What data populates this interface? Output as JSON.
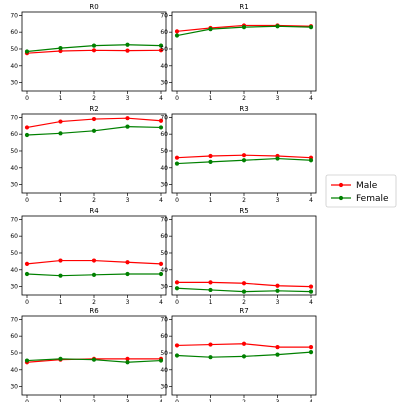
{
  "chart_data": {
    "type": "line",
    "x": [
      0,
      1,
      2,
      3,
      4
    ],
    "ylim": [
      25,
      72
    ],
    "yticks": [
      30,
      40,
      50,
      60,
      70
    ],
    "xticks": [
      0,
      1,
      2,
      3,
      4
    ],
    "grid": false,
    "legend_placement": "right",
    "series_styles": {
      "Male": {
        "color": "#ff0000",
        "marker": "circle"
      },
      "Female": {
        "color": "#008000",
        "marker": "circle"
      }
    },
    "legend": [
      "Male",
      "Female"
    ],
    "panels": [
      {
        "title": "R0",
        "series": [
          {
            "name": "Male",
            "values": [
              47.5,
              48.8,
              49.2,
              49.0,
              49.2
            ]
          },
          {
            "name": "Female",
            "values": [
              48.5,
              50.5,
              52.0,
              52.5,
              52.0
            ]
          }
        ]
      },
      {
        "title": "R1",
        "series": [
          {
            "name": "Male",
            "values": [
              60.5,
              62.5,
              64.0,
              64.0,
              63.5
            ]
          },
          {
            "name": "Female",
            "values": [
              58.0,
              61.8,
              63.0,
              63.5,
              63.0
            ]
          }
        ]
      },
      {
        "title": "R2",
        "series": [
          {
            "name": "Male",
            "values": [
              64.0,
              67.5,
              69.0,
              69.5,
              68.0
            ]
          },
          {
            "name": "Female",
            "values": [
              59.5,
              60.5,
              62.0,
              64.5,
              64.0
            ]
          }
        ]
      },
      {
        "title": "R3",
        "series": [
          {
            "name": "Male",
            "values": [
              46.0,
              47.0,
              47.5,
              47.0,
              46.0
            ]
          },
          {
            "name": "Female",
            "values": [
              42.5,
              43.5,
              44.5,
              45.5,
              44.5
            ]
          }
        ]
      },
      {
        "title": "R4",
        "series": [
          {
            "name": "Male",
            "values": [
              43.5,
              45.5,
              45.5,
              44.5,
              43.5
            ]
          },
          {
            "name": "Female",
            "values": [
              37.5,
              36.5,
              37.0,
              37.5,
              37.5
            ]
          }
        ]
      },
      {
        "title": "R5",
        "series": [
          {
            "name": "Male",
            "values": [
              32.5,
              32.5,
              32.0,
              30.5,
              30.0
            ]
          },
          {
            "name": "Female",
            "values": [
              29.0,
              28.0,
              27.0,
              27.5,
              27.0
            ]
          }
        ]
      },
      {
        "title": "R6",
        "series": [
          {
            "name": "Male",
            "values": [
              44.5,
              46.0,
              46.5,
              46.5,
              46.5
            ]
          },
          {
            "name": "Female",
            "values": [
              45.5,
              46.5,
              46.0,
              44.5,
              45.5
            ]
          }
        ]
      },
      {
        "title": "R7",
        "series": [
          {
            "name": "Male",
            "values": [
              54.5,
              55.0,
              55.5,
              53.5,
              53.5
            ]
          },
          {
            "name": "Female",
            "values": [
              48.5,
              47.5,
              48.0,
              49.0,
              50.5
            ]
          }
        ]
      }
    ]
  }
}
